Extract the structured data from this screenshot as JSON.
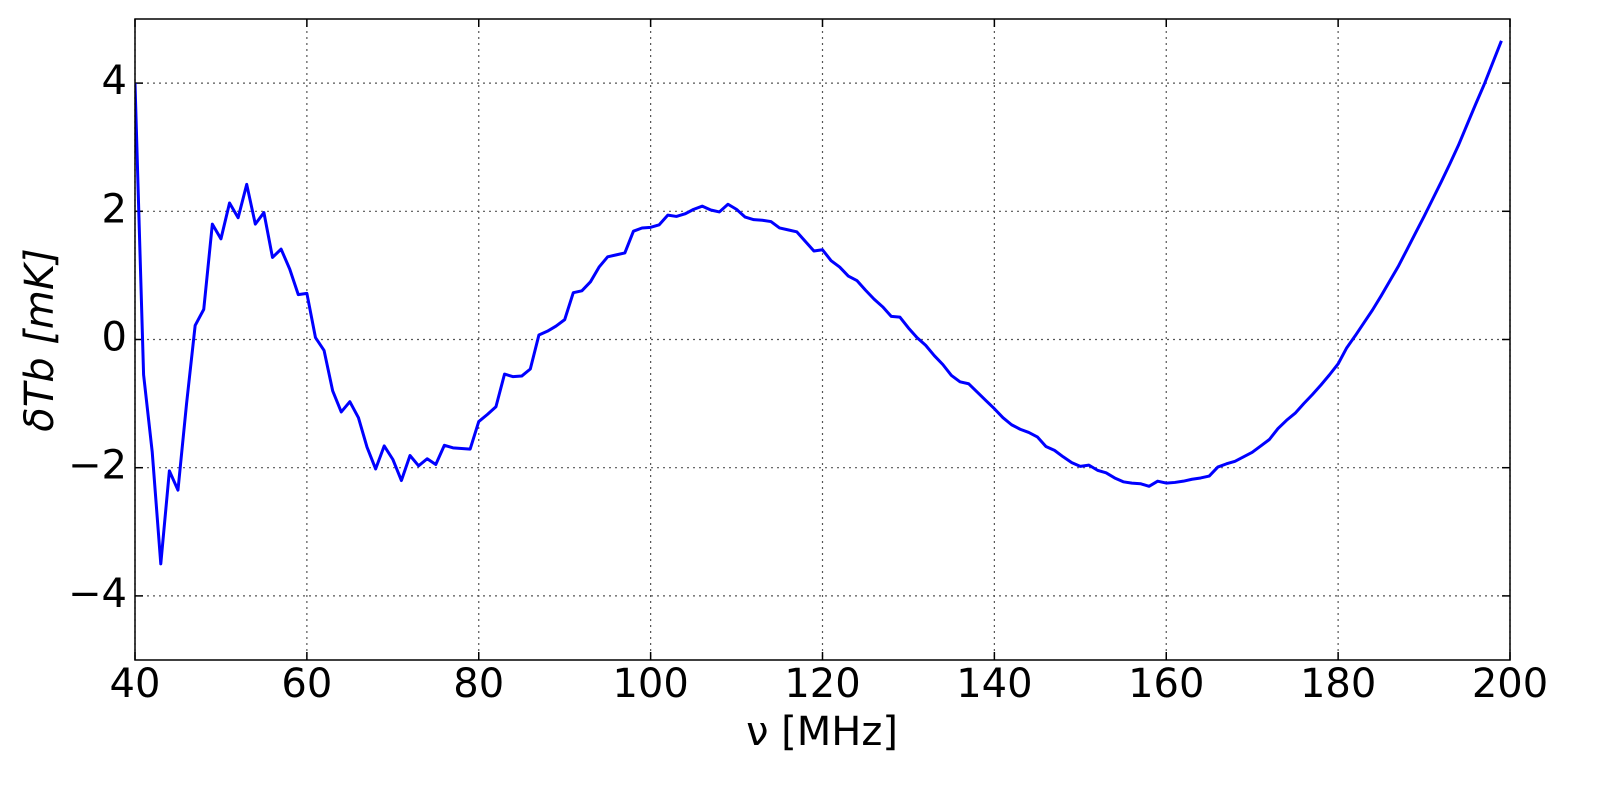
{
  "chart_data": {
    "type": "line",
    "xlabel": "ν [MHz]",
    "ylabel": "δTb [mK]",
    "xlim": [
      40,
      200
    ],
    "ylim": [
      -5,
      5
    ],
    "xticks": [
      40,
      60,
      80,
      100,
      120,
      140,
      160,
      180,
      200
    ],
    "yticks": [
      {
        "value": -4,
        "label": "−4"
      },
      {
        "value": -2,
        "label": "−2"
      },
      0,
      2,
      4
    ],
    "grid": true,
    "x": [
      40,
      41,
      42,
      43,
      44,
      45,
      46,
      47,
      48,
      49,
      50,
      51,
      52,
      53,
      54,
      55,
      56,
      57,
      58,
      59,
      60,
      61,
      62,
      63,
      64,
      65,
      66,
      67,
      68,
      69,
      70,
      71,
      72,
      73,
      74,
      75,
      76,
      77,
      78,
      79,
      80,
      81,
      82,
      83,
      84,
      85,
      86,
      87,
      88,
      89,
      90,
      91,
      92,
      93,
      94,
      95,
      96,
      97,
      98,
      99,
      100,
      101,
      102,
      103,
      104,
      105,
      106,
      107,
      108,
      109,
      110,
      111,
      112,
      113,
      114,
      115,
      116,
      117,
      118,
      119,
      120,
      121,
      122,
      123,
      124,
      125,
      126,
      127,
      128,
      129,
      130,
      131,
      132,
      133,
      134,
      135,
      136,
      137,
      138,
      139,
      140,
      141,
      142,
      143,
      144,
      145,
      146,
      147,
      148,
      149,
      150,
      151,
      152,
      153,
      154,
      155,
      156,
      157,
      158,
      159,
      160,
      161,
      162,
      163,
      164,
      165,
      166,
      167,
      168,
      169,
      170,
      171,
      172,
      173,
      174,
      175,
      176,
      177,
      178,
      179,
      180,
      181,
      182,
      183,
      184,
      185,
      186,
      187,
      188,
      189,
      190,
      191,
      192,
      193,
      194,
      195,
      196,
      197,
      198,
      199
    ],
    "series": [
      {
        "color": "#0000ff",
        "values": [
          4.0,
          -0.55,
          -1.75,
          -3.5,
          -2.05,
          -2.35,
          -1.0,
          0.22,
          0.47,
          1.8,
          1.57,
          2.13,
          1.9,
          2.42,
          1.8,
          1.98,
          1.28,
          1.41,
          1.1,
          0.7,
          0.72,
          0.03,
          -0.17,
          -0.8,
          -1.13,
          -0.97,
          -1.22,
          -1.68,
          -2.02,
          -1.66,
          -1.87,
          -2.2,
          -1.81,
          -1.97,
          -1.86,
          -1.95,
          -1.65,
          -1.69,
          -1.7,
          -1.71,
          -1.28,
          -1.17,
          -1.05,
          -0.54,
          -0.58,
          -0.57,
          -0.46,
          0.07,
          0.13,
          0.21,
          0.31,
          0.73,
          0.76,
          0.9,
          1.13,
          1.29,
          1.32,
          1.35,
          1.69,
          1.74,
          1.75,
          1.79,
          1.94,
          1.92,
          1.96,
          2.03,
          2.08,
          2.02,
          1.99,
          2.11,
          2.03,
          1.91,
          1.87,
          1.86,
          1.84,
          1.74,
          1.71,
          1.68,
          1.53,
          1.38,
          1.4,
          1.23,
          1.13,
          0.99,
          0.92,
          0.77,
          0.63,
          0.51,
          0.36,
          0.35,
          0.18,
          0.03,
          -0.09,
          -0.25,
          -0.39,
          -0.56,
          -0.66,
          -0.69,
          -0.82,
          -0.95,
          -1.08,
          -1.22,
          -1.33,
          -1.4,
          -1.45,
          -1.52,
          -1.67,
          -1.73,
          -1.83,
          -1.92,
          -1.98,
          -1.96,
          -2.04,
          -2.08,
          -2.16,
          -2.22,
          -2.24,
          -2.25,
          -2.29,
          -2.21,
          -2.24,
          -2.23,
          -2.21,
          -2.18,
          -2.16,
          -2.13,
          -1.99,
          -1.94,
          -1.9,
          -1.83,
          -1.76,
          -1.66,
          -1.56,
          -1.39,
          -1.26,
          -1.15,
          -1.0,
          -0.86,
          -0.71,
          -0.55,
          -0.38,
          -0.13,
          0.06,
          0.26,
          0.46,
          0.68,
          0.91,
          1.14,
          1.4,
          1.66,
          1.92,
          2.19,
          2.46,
          2.74,
          3.03,
          3.35,
          3.67,
          3.98,
          4.32,
          4.66
        ]
      }
    ]
  }
}
